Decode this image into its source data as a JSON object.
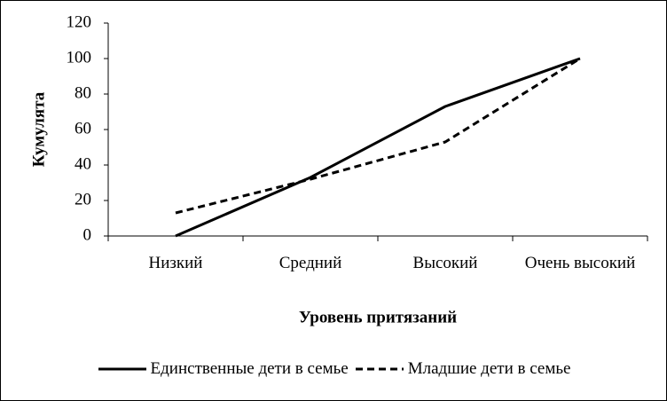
{
  "chart_data": {
    "type": "line",
    "x_label": "Уровень притязаний",
    "y_label": "Кумулята",
    "categories": [
      "Низкий",
      "Средний",
      "Высокий",
      "Очень высокий"
    ],
    "series": [
      {
        "name": "Единственные дети в семье",
        "color": "#000000",
        "dash": "solid",
        "values": [
          0,
          33,
          73,
          100
        ]
      },
      {
        "name": "Младшие дети в семье",
        "color": "#000000",
        "dash": "dashed",
        "values": [
          13,
          32,
          53,
          100
        ]
      }
    ],
    "ylim": [
      0,
      120
    ],
    "yticks": [
      0,
      20,
      40,
      60,
      80,
      100,
      120
    ],
    "legend": "bottom"
  }
}
